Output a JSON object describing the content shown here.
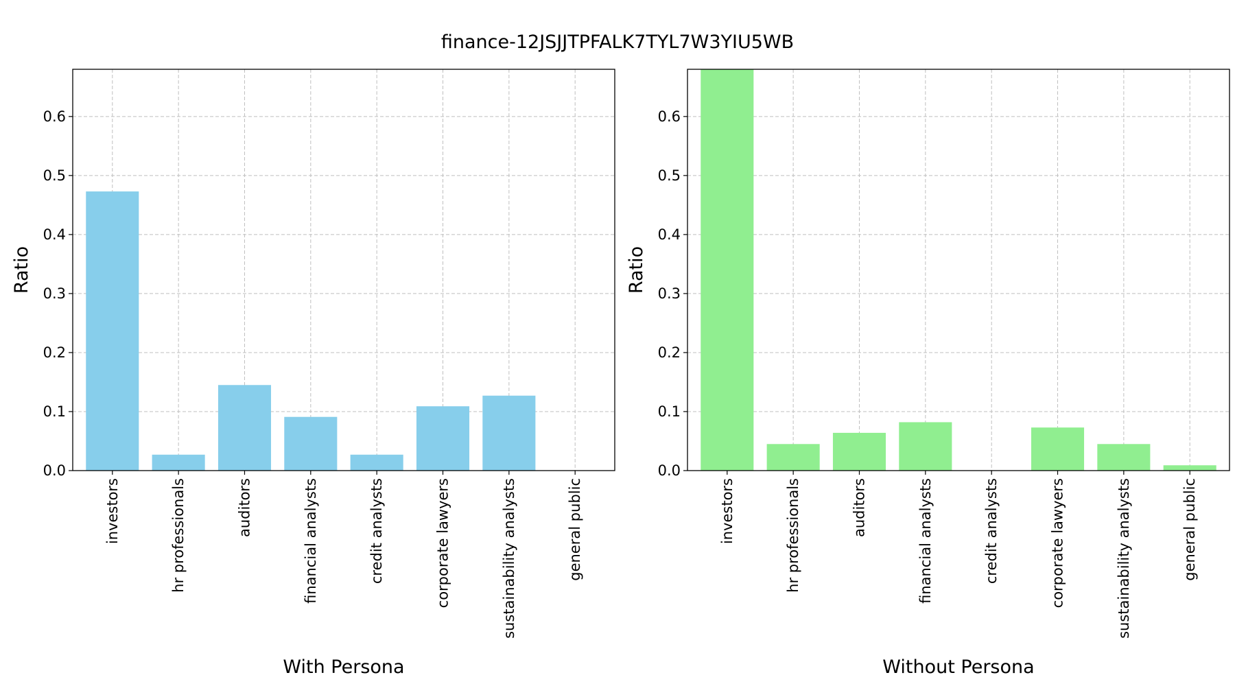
{
  "figure": {
    "title": "finance-12JSJJTPFALK7TYL7W3YIU5WB"
  },
  "chart_data": [
    {
      "type": "bar",
      "title": "",
      "xlabel": "With Persona",
      "ylabel": "Ratio",
      "ylim": [
        0,
        0.68
      ],
      "yticks": [
        0.0,
        0.1,
        0.2,
        0.3,
        0.4,
        0.5,
        0.6
      ],
      "grid": true,
      "color": "#87CEEB",
      "categories": [
        "investors",
        "hr professionals",
        "auditors",
        "financial analysts",
        "credit analysts",
        "corporate lawyers",
        "sustainability analysts",
        "general public"
      ],
      "values": [
        0.473,
        0.027,
        0.145,
        0.091,
        0.027,
        0.109,
        0.127,
        0.0
      ]
    },
    {
      "type": "bar",
      "title": "",
      "xlabel": "Without Persona",
      "ylabel": "Ratio",
      "ylim": [
        0,
        0.68
      ],
      "yticks": [
        0.0,
        0.1,
        0.2,
        0.3,
        0.4,
        0.5,
        0.6
      ],
      "grid": true,
      "color": "#90EE90",
      "categories": [
        "investors",
        "hr professionals",
        "auditors",
        "financial analysts",
        "credit analysts",
        "corporate lawyers",
        "sustainability analysts",
        "general public"
      ],
      "values": [
        0.682,
        0.045,
        0.064,
        0.082,
        0.0,
        0.073,
        0.045,
        0.009
      ]
    }
  ]
}
